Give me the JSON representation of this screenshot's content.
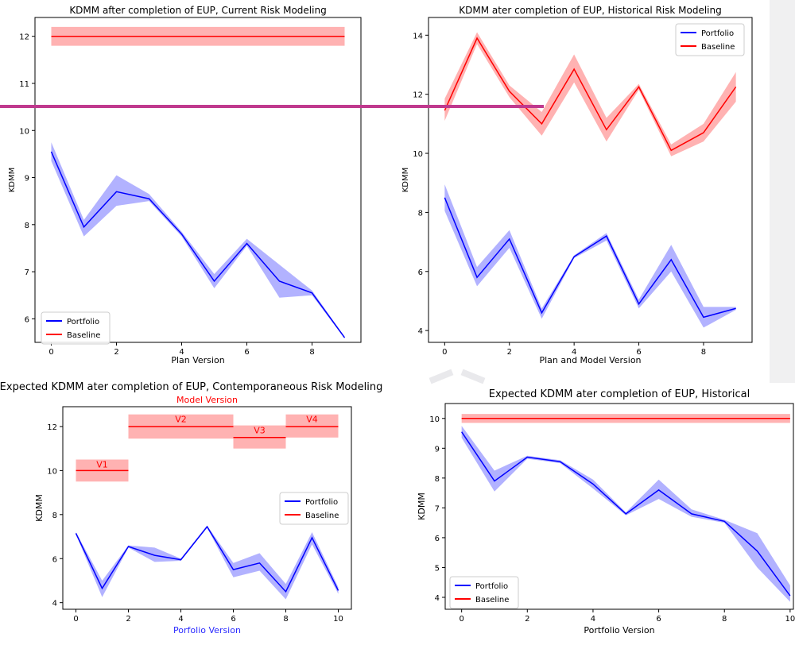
{
  "chart_data": [
    {
      "type": "line",
      "title": "KDMM after completion of EUP, Current Risk Modeling",
      "xlabel": "Plan Version",
      "ylabel": "KDMM",
      "xlim": [
        -0.5,
        9.5
      ],
      "ylim": [
        5.5,
        12.4
      ],
      "xticks": [
        "0",
        "2",
        "4",
        "6",
        "8"
      ],
      "yticks": [
        "6",
        "7",
        "8",
        "9",
        "10",
        "11",
        "12"
      ],
      "legend": "lower-left",
      "series": [
        {
          "name": "Portfolio",
          "color": "#0000ff",
          "x": [
            0,
            1,
            2,
            3,
            4,
            5,
            6,
            7,
            8,
            9
          ],
          "y": [
            9.55,
            7.95,
            8.7,
            8.55,
            7.8,
            6.8,
            7.6,
            6.8,
            6.55,
            5.6
          ],
          "upper": [
            9.75,
            8.1,
            9.05,
            8.65,
            7.85,
            6.95,
            7.7,
            7.15,
            6.6,
            5.62
          ],
          "lower": [
            9.35,
            7.75,
            8.4,
            8.5,
            7.75,
            6.65,
            7.55,
            6.45,
            6.5,
            5.58
          ]
        },
        {
          "name": "Baseline",
          "color": "#ff0000",
          "x": [
            0,
            9
          ],
          "y": [
            12.0,
            12.0
          ],
          "upper": [
            12.2,
            12.2
          ],
          "lower": [
            11.8,
            11.8
          ]
        }
      ]
    },
    {
      "type": "line",
      "title": "KDMM ater completion of EUP, Historical Risk Modeling",
      "xlabel": "Plan and Model Version",
      "ylabel": "KDMM",
      "xlim": [
        -0.5,
        9.5
      ],
      "ylim": [
        3.6,
        14.6
      ],
      "xticks": [
        "0",
        "2",
        "4",
        "6",
        "8"
      ],
      "yticks": [
        "4",
        "6",
        "8",
        "10",
        "12",
        "14"
      ],
      "legend": "top-right",
      "series": [
        {
          "name": "Portfolio",
          "color": "#0000ff",
          "x": [
            0,
            1,
            2,
            3,
            4,
            5,
            6,
            7,
            8,
            9
          ],
          "y": [
            8.5,
            5.8,
            7.1,
            4.6,
            6.5,
            7.2,
            4.9,
            6.4,
            4.45,
            4.75
          ],
          "upper": [
            8.95,
            6.15,
            7.4,
            4.75,
            6.55,
            7.3,
            5.05,
            6.9,
            4.8,
            4.8
          ],
          "lower": [
            8.05,
            5.5,
            6.8,
            4.4,
            6.45,
            7.05,
            4.75,
            6.0,
            4.1,
            4.7
          ]
        },
        {
          "name": "Baseline",
          "color": "#ff0000",
          "x": [
            0,
            1,
            2,
            3,
            4,
            5,
            6,
            7,
            8,
            9
          ],
          "y": [
            11.45,
            13.9,
            12.1,
            11.0,
            12.85,
            10.8,
            12.25,
            10.1,
            10.7,
            12.25
          ],
          "upper": [
            11.85,
            14.1,
            12.3,
            11.4,
            13.35,
            11.2,
            12.35,
            10.3,
            11.0,
            12.75
          ],
          "lower": [
            11.1,
            13.7,
            11.9,
            10.6,
            12.4,
            10.4,
            12.15,
            9.9,
            10.4,
            11.75
          ]
        }
      ]
    },
    {
      "type": "line",
      "title": "Expected KDMM ater completion of EUP, Contemporaneous Risk Modeling",
      "subtitle": "Model Version",
      "xlabel": "Porfolio Version",
      "ylabel": "KDMM",
      "xlim": [
        -0.5,
        10.5
      ],
      "ylim": [
        3.7,
        12.9
      ],
      "xticks": [
        "0",
        "2",
        "4",
        "6",
        "8",
        "10"
      ],
      "yticks": [
        "4",
        "6",
        "8",
        "10",
        "12"
      ],
      "legend": "center-right",
      "series": [
        {
          "name": "Portfolio",
          "color": "#0000ff",
          "x": [
            0,
            1,
            2,
            3,
            4,
            5,
            6,
            7,
            8,
            9,
            10
          ],
          "y": [
            7.15,
            4.65,
            6.55,
            6.15,
            5.95,
            7.45,
            5.5,
            5.8,
            4.5,
            6.95,
            4.55
          ],
          "upper": [
            7.2,
            5.0,
            6.6,
            6.5,
            6.0,
            7.5,
            5.8,
            6.25,
            4.85,
            7.2,
            4.7
          ],
          "lower": [
            7.1,
            4.25,
            6.5,
            5.85,
            5.9,
            7.4,
            5.15,
            5.45,
            4.15,
            6.65,
            4.4
          ]
        }
      ],
      "segments": [
        {
          "label": "V1",
          "x": [
            0,
            2
          ],
          "y": 10.0,
          "upper": 10.5,
          "lower": 9.5
        },
        {
          "label": "V2",
          "x": [
            2,
            6
          ],
          "y": 12.0,
          "upper": 12.55,
          "lower": 11.45
        },
        {
          "label": "V3",
          "x": [
            6,
            8
          ],
          "y": 11.5,
          "upper": 12.05,
          "lower": 11.0
        },
        {
          "label": "V4",
          "x": [
            8,
            10
          ],
          "y": 12.0,
          "upper": 12.55,
          "lower": 11.5
        }
      ],
      "segment_name": "Baseline",
      "segment_color": "#ff0000"
    },
    {
      "type": "line",
      "title": "Expected KDMM ater completion of EUP, Historical",
      "xlabel": "Portfolio Version",
      "ylabel": "KDMM",
      "xlim": [
        -0.5,
        10.1
      ],
      "ylim": [
        3.6,
        10.5
      ],
      "xticks": [
        "0",
        "2",
        "4",
        "6",
        "8",
        "10"
      ],
      "yticks": [
        "4",
        "5",
        "6",
        "7",
        "8",
        "9",
        "10"
      ],
      "legend": "lower-left",
      "series": [
        {
          "name": "Portfolio",
          "color": "#0000ff",
          "x": [
            0,
            1,
            2,
            3,
            4,
            5,
            6,
            7,
            8,
            9,
            10
          ],
          "y": [
            9.55,
            7.9,
            8.7,
            8.55,
            7.8,
            6.8,
            7.6,
            6.8,
            6.55,
            5.55,
            4.05
          ],
          "upper": [
            9.75,
            8.25,
            8.75,
            8.6,
            7.95,
            6.85,
            7.95,
            6.95,
            6.6,
            6.15,
            4.4
          ],
          "lower": [
            9.35,
            7.55,
            8.65,
            8.5,
            7.65,
            6.75,
            7.3,
            6.7,
            6.5,
            5.0,
            3.85
          ]
        },
        {
          "name": "Baseline",
          "color": "#ff0000",
          "x": [
            0,
            10
          ],
          "y": [
            10.0,
            10.0
          ],
          "upper": [
            10.15,
            10.15
          ],
          "lower": [
            9.85,
            9.85
          ]
        }
      ]
    }
  ]
}
